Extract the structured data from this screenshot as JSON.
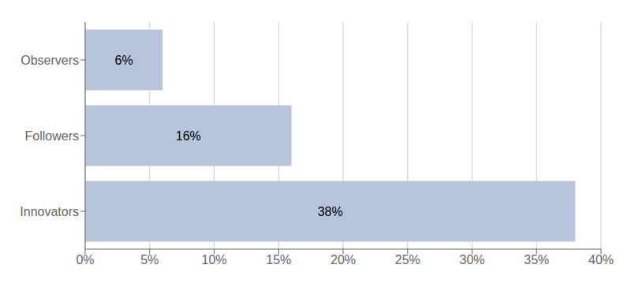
{
  "chart_data": {
    "type": "bar",
    "orientation": "horizontal",
    "categories": [
      "Innovators",
      "Followers",
      "Observers"
    ],
    "values": [
      38,
      16,
      6
    ],
    "value_labels": [
      "38%",
      "16%",
      "6%"
    ],
    "data_labels": true,
    "color": "#b8c4dc",
    "xlim": [
      0,
      40
    ],
    "xticks": [
      {
        "value": 0,
        "label": "0%"
      },
      {
        "value": 5,
        "label": "5%"
      },
      {
        "value": 10,
        "label": "10%"
      },
      {
        "value": 15,
        "label": "15%"
      },
      {
        "value": 20,
        "label": "20%"
      },
      {
        "value": 25,
        "label": "25%"
      },
      {
        "value": 30,
        "label": "30%"
      },
      {
        "value": 35,
        "label": "35%"
      },
      {
        "value": 40,
        "label": "40%"
      }
    ],
    "grid": "x"
  }
}
